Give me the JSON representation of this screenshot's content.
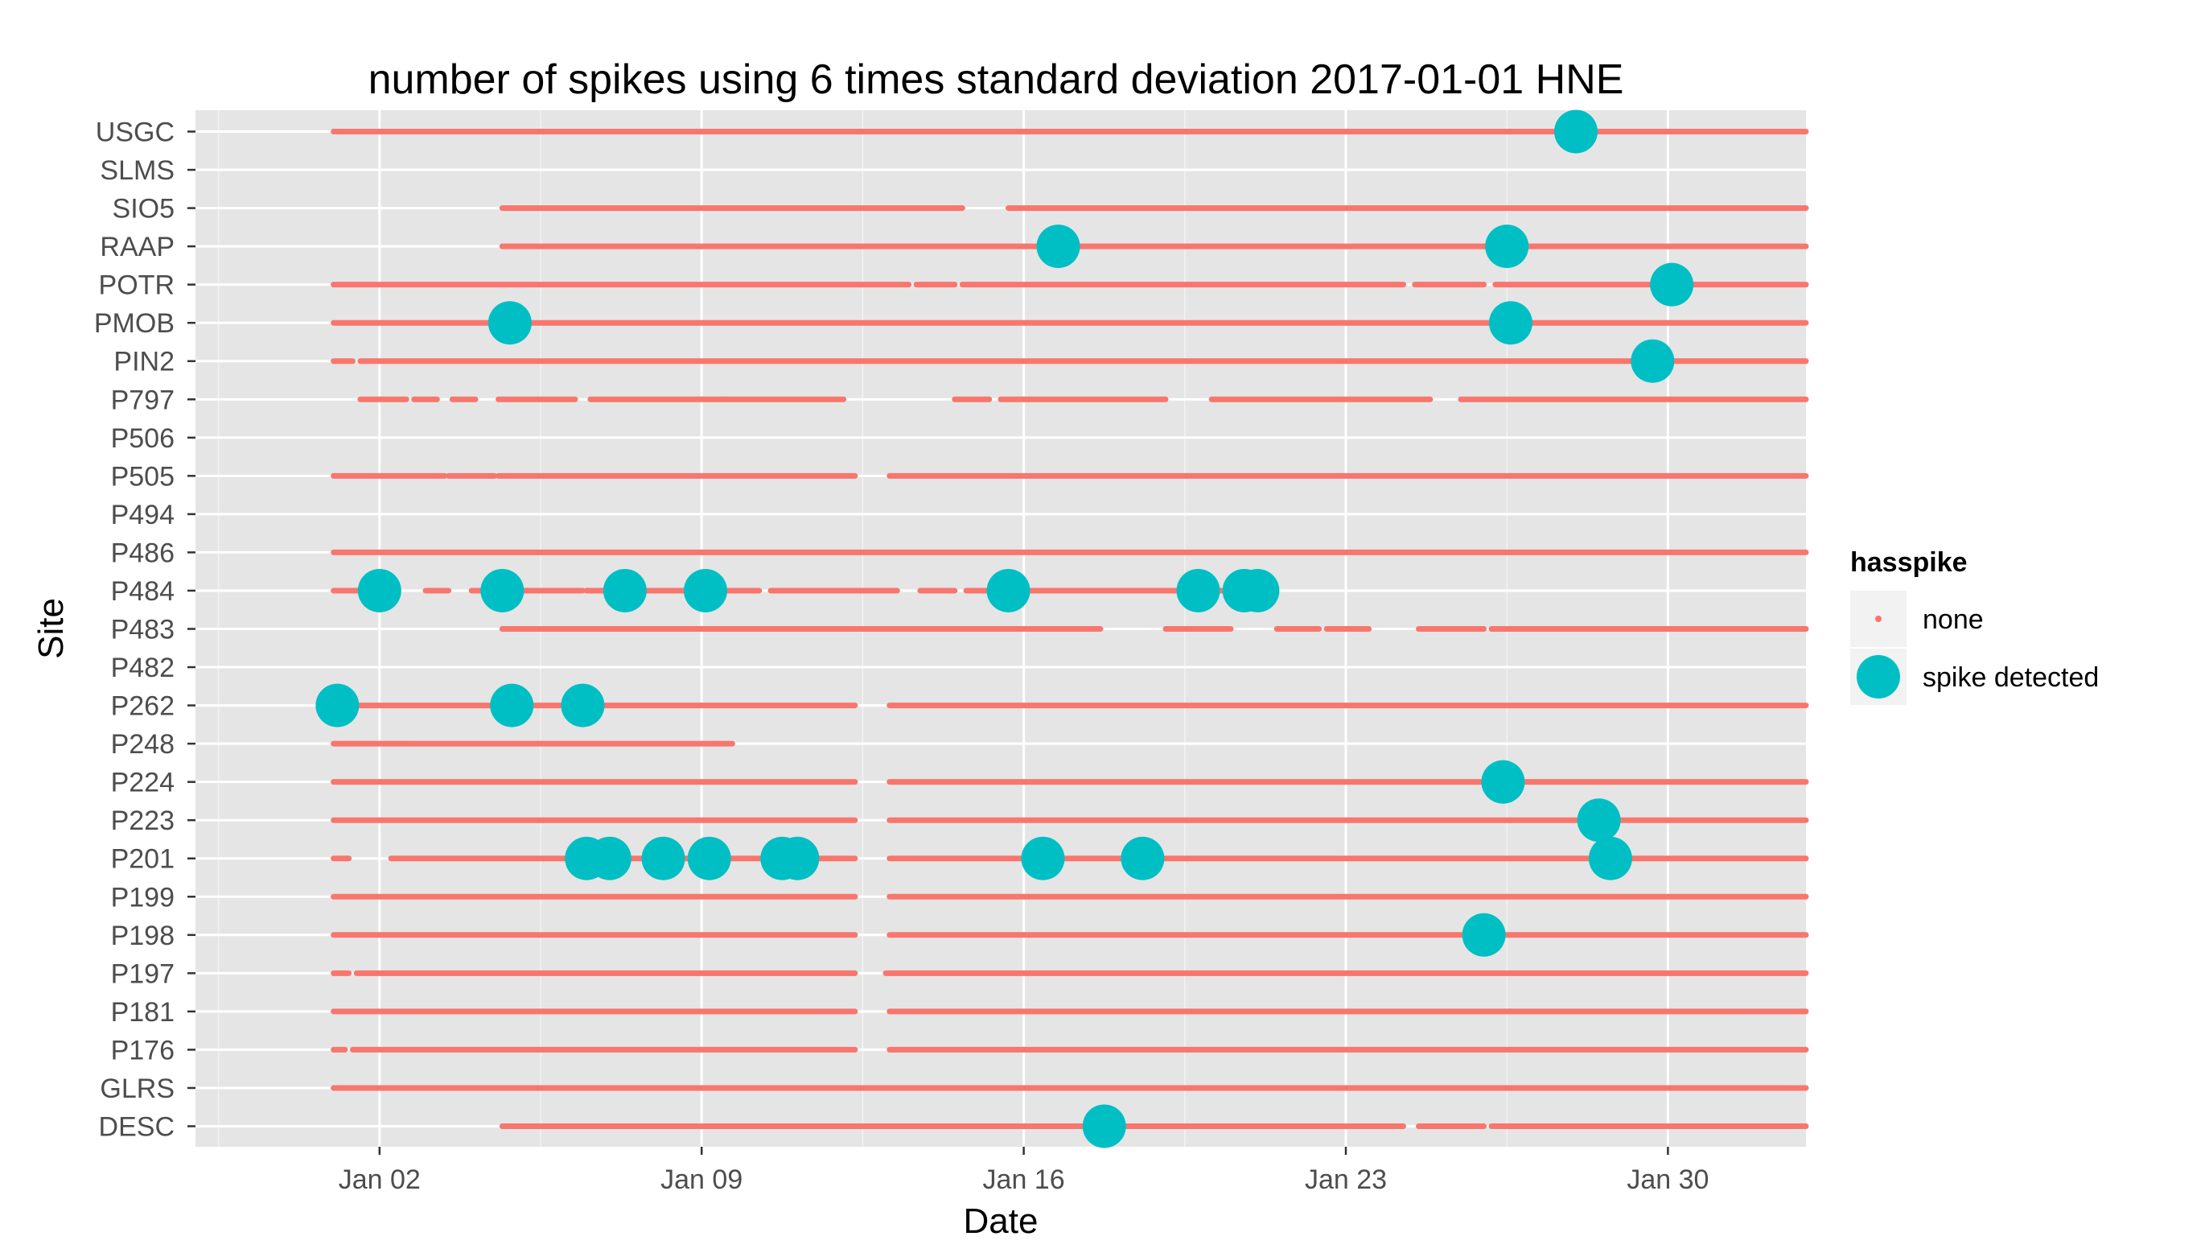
{
  "chart_data": {
    "type": "scatter",
    "title": "number of spikes using  6 times standard deviation 2017-01-01 HNE",
    "xlabel": "Date",
    "ylabel": "Site",
    "x_range": [
      "2016-12-29",
      "2017-02-02"
    ],
    "x_ticks": [
      {
        "date": "2017-01-02",
        "label": "Jan 02"
      },
      {
        "date": "2017-01-09",
        "label": "Jan 09"
      },
      {
        "date": "2017-01-16",
        "label": "Jan 16"
      },
      {
        "date": "2017-01-23",
        "label": "Jan 23"
      },
      {
        "date": "2017-01-30",
        "label": "Jan 30"
      }
    ],
    "sites": [
      "USGC",
      "SLMS",
      "SIO5",
      "RAAP",
      "POTR",
      "PMOB",
      "PIN2",
      "P797",
      "P506",
      "P505",
      "P494",
      "P486",
      "P484",
      "P483",
      "P482",
      "P262",
      "P248",
      "P224",
      "P223",
      "P201",
      "P199",
      "P198",
      "P197",
      "P181",
      "P176",
      "GLRS",
      "DESC"
    ],
    "colors": {
      "none": "#f8766d",
      "spike": "#00bfc4",
      "panel": "#e5e5e5"
    },
    "legend": {
      "title": "hasspike",
      "placement": "right",
      "entries": [
        {
          "key": "none",
          "label": "none"
        },
        {
          "key": "spike",
          "label": "spike detected"
        }
      ]
    },
    "series": [
      {
        "key": "none",
        "coverage": {
          "USGC": [
            [
              "2017-01-01T00:00",
              "2017-02-01T23:59"
            ]
          ],
          "SIO5": [
            [
              "2017-01-04T16:00",
              "2017-01-14T16:00"
            ],
            [
              "2017-01-15T16:00",
              "2017-02-01T23:59"
            ]
          ],
          "RAAP": [
            [
              "2017-01-04T16:00",
              "2017-02-01T23:59"
            ]
          ],
          "POTR": [
            [
              "2017-01-01T00:00",
              "2017-01-13T12:00"
            ],
            [
              "2017-01-13T16:00",
              "2017-01-14T12:00"
            ],
            [
              "2017-01-14T16:00",
              "2017-01-24T06:00"
            ],
            [
              "2017-01-24T12:00",
              "2017-01-26T00:00"
            ],
            [
              "2017-01-26T06:00",
              "2017-02-01T23:59"
            ]
          ],
          "PMOB": [
            [
              "2017-01-01T00:00",
              "2017-02-01T23:59"
            ]
          ],
          "PIN2": [
            [
              "2017-01-01T00:00",
              "2017-01-01T10:00"
            ],
            [
              "2017-01-01T14:00",
              "2017-02-01T23:59"
            ]
          ],
          "P797": [
            [
              "2017-01-01T14:00",
              "2017-01-02T14:00"
            ],
            [
              "2017-01-02T18:00",
              "2017-01-03T06:00"
            ],
            [
              "2017-01-03T14:00",
              "2017-01-04T02:00"
            ],
            [
              "2017-01-04T14:00",
              "2017-01-06T06:00"
            ],
            [
              "2017-01-06T14:00",
              "2017-01-09T12:00"
            ],
            [
              "2017-01-09T12:00",
              "2017-01-12T02:00"
            ],
            [
              "2017-01-14T12:00",
              "2017-01-15T06:00"
            ],
            [
              "2017-01-15T12:00",
              "2017-01-19T02:00"
            ],
            [
              "2017-01-20T02:00",
              "2017-01-24T20:00"
            ],
            [
              "2017-01-25T12:00",
              "2017-02-01T23:59"
            ]
          ],
          "P505": [
            [
              "2017-01-01T00:00",
              "2017-01-03T10:00"
            ],
            [
              "2017-01-03T12:00",
              "2017-01-04T12:00"
            ],
            [
              "2017-01-04T14:00",
              "2017-01-12T08:00"
            ],
            [
              "2017-01-13T02:00",
              "2017-02-01T23:59"
            ]
          ],
          "P486": [
            [
              "2017-01-01T00:00",
              "2017-02-01T23:59"
            ]
          ],
          "P484": [
            [
              "2017-01-01T00:00",
              "2017-01-02T00:00"
            ],
            [
              "2017-01-03T00:00",
              "2017-01-03T12:00"
            ],
            [
              "2017-01-04T00:00",
              "2017-01-06T10:00"
            ],
            [
              "2017-01-06T12:00",
              "2017-01-10T06:00"
            ],
            [
              "2017-01-10T12:00",
              "2017-01-13T06:00"
            ],
            [
              "2017-01-13T18:00",
              "2017-01-14T12:00"
            ],
            [
              "2017-01-14T18:00",
              "2017-01-21T08:00"
            ]
          ],
          "P483": [
            [
              "2017-01-04T16:00",
              "2017-01-17T16:00"
            ],
            [
              "2017-01-19T02:00",
              "2017-01-20T12:00"
            ],
            [
              "2017-01-21T12:00",
              "2017-01-22T10:00"
            ],
            [
              "2017-01-22T14:00",
              "2017-01-23T12:00"
            ],
            [
              "2017-01-24T14:00",
              "2017-01-26T00:00"
            ],
            [
              "2017-01-26T04:00",
              "2017-02-01T23:59"
            ]
          ],
          "P262": [
            [
              "2017-01-01T00:00",
              "2017-01-12T08:00"
            ],
            [
              "2017-01-13T02:00",
              "2017-02-01T23:59"
            ]
          ],
          "P248": [
            [
              "2017-01-01T00:00",
              "2017-01-09T16:00"
            ]
          ],
          "P224": [
            [
              "2017-01-01T00:00",
              "2017-01-12T08:00"
            ],
            [
              "2017-01-13T02:00",
              "2017-02-01T23:59"
            ]
          ],
          "P223": [
            [
              "2017-01-01T00:00",
              "2017-01-12T08:00"
            ],
            [
              "2017-01-13T02:00",
              "2017-02-01T23:59"
            ]
          ],
          "P201": [
            [
              "2017-01-01T00:00",
              "2017-01-01T08:00"
            ],
            [
              "2017-01-02T06:00",
              "2017-01-12T08:00"
            ],
            [
              "2017-01-13T02:00",
              "2017-02-01T23:59"
            ]
          ],
          "P199": [
            [
              "2017-01-01T00:00",
              "2017-01-12T08:00"
            ],
            [
              "2017-01-13T02:00",
              "2017-02-01T23:59"
            ]
          ],
          "P198": [
            [
              "2017-01-01T00:00",
              "2017-01-12T08:00"
            ],
            [
              "2017-01-13T02:00",
              "2017-02-01T23:59"
            ]
          ],
          "P197": [
            [
              "2017-01-01T00:00",
              "2017-01-01T08:00"
            ],
            [
              "2017-01-01T12:00",
              "2017-01-12T08:00"
            ],
            [
              "2017-01-13T00:00",
              "2017-02-01T23:59"
            ]
          ],
          "P181": [
            [
              "2017-01-01T00:00",
              "2017-01-12T08:00"
            ],
            [
              "2017-01-13T02:00",
              "2017-02-01T23:59"
            ]
          ],
          "P176": [
            [
              "2017-01-01T00:00",
              "2017-01-01T06:00"
            ],
            [
              "2017-01-01T10:00",
              "2017-01-12T08:00"
            ],
            [
              "2017-01-13T02:00",
              "2017-02-01T23:59"
            ]
          ],
          "GLRS": [
            [
              "2017-01-01T00:00",
              "2017-02-01T23:59"
            ]
          ],
          "DESC": [
            [
              "2017-01-04T16:00",
              "2017-01-24T06:00"
            ],
            [
              "2017-01-24T14:00",
              "2017-01-26T00:00"
            ],
            [
              "2017-01-26T04:00",
              "2017-02-01T23:59"
            ]
          ]
        }
      },
      {
        "key": "spike",
        "points": [
          {
            "site": "USGC",
            "x": "2017-01-28T00:00"
          },
          {
            "site": "RAAP",
            "x": "2017-01-16T18:00"
          },
          {
            "site": "RAAP",
            "x": "2017-01-26T12:00"
          },
          {
            "site": "POTR",
            "x": "2017-01-30T02:00"
          },
          {
            "site": "PMOB",
            "x": "2017-01-04T20:00"
          },
          {
            "site": "PMOB",
            "x": "2017-01-26T14:00"
          },
          {
            "site": "PIN2",
            "x": "2017-01-29T16:00"
          },
          {
            "site": "P484",
            "x": "2017-01-02T00:00"
          },
          {
            "site": "P484",
            "x": "2017-01-04T16:00"
          },
          {
            "site": "P484",
            "x": "2017-01-07T08:00"
          },
          {
            "site": "P484",
            "x": "2017-01-09T02:00"
          },
          {
            "site": "P484",
            "x": "2017-01-15T16:00"
          },
          {
            "site": "P484",
            "x": "2017-01-19T19:00"
          },
          {
            "site": "P484",
            "x": "2017-01-20T19:00"
          },
          {
            "site": "P484",
            "x": "2017-01-21T02:00"
          },
          {
            "site": "P262",
            "x": "2017-01-01T02:00"
          },
          {
            "site": "P262",
            "x": "2017-01-04T21:00"
          },
          {
            "site": "P262",
            "x": "2017-01-06T10:00"
          },
          {
            "site": "P224",
            "x": "2017-01-26T10:00"
          },
          {
            "site": "P223",
            "x": "2017-01-28T12:00"
          },
          {
            "site": "P201",
            "x": "2017-01-06T12:00"
          },
          {
            "site": "P201",
            "x": "2017-01-07T00:00"
          },
          {
            "site": "P201",
            "x": "2017-01-08T04:00"
          },
          {
            "site": "P201",
            "x": "2017-01-09T04:00"
          },
          {
            "site": "P201",
            "x": "2017-01-10T18:00"
          },
          {
            "site": "P201",
            "x": "2017-01-11T02:00"
          },
          {
            "site": "P201",
            "x": "2017-01-16T10:00"
          },
          {
            "site": "P201",
            "x": "2017-01-18T14:00"
          },
          {
            "site": "P201",
            "x": "2017-01-28T18:00"
          },
          {
            "site": "P198",
            "x": "2017-01-26T00:00"
          },
          {
            "site": "DESC",
            "x": "2017-01-17T18:00"
          }
        ]
      }
    ]
  }
}
